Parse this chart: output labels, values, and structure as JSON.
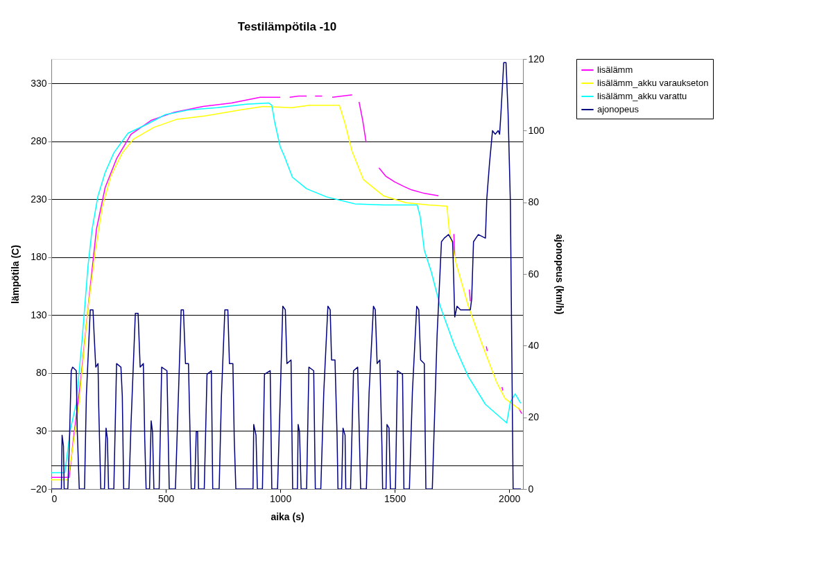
{
  "chart_data": {
    "type": "line",
    "title": "Testilämpötila -10",
    "xlabel": "aika (s)",
    "ylabel": "lämpötila (C)",
    "y2label": "ajonopeus (km/h)",
    "xlim": [
      0,
      2060
    ],
    "xticks": [
      0,
      500,
      1000,
      1500,
      2000
    ],
    "ylim": [
      -20,
      351
    ],
    "yticks": [
      -20,
      30,
      80,
      130,
      180,
      230,
      280,
      330
    ],
    "y2lim": [
      0,
      120
    ],
    "y2ticks": [
      0,
      20,
      40,
      60,
      80,
      100,
      120
    ],
    "grid": "y",
    "legend": "right",
    "ref_lines": [
      {
        "axis": "y",
        "value": 0,
        "color": "#000000"
      }
    ],
    "series": [
      {
        "name": "lisälämm",
        "color": "#ff00ff",
        "x": [
          0,
          78,
          97,
          128,
          166,
          197,
          235,
          285,
          348,
          436,
          536,
          662,
          787,
          912,
          988,
          1000,
          1020,
          1041,
          1080,
          1115,
          1134,
          1152,
          1183,
          1205,
          1227,
          1270,
          1314,
          1330,
          1344,
          1360,
          1375,
          1400,
          1431,
          1460,
          1499,
          1540,
          1574,
          1630,
          1691,
          1720,
          1758,
          1762,
          1790,
          1826,
          1830,
          1860,
          1900,
          1904,
          1935,
          1968,
          1972,
          2005,
          2040,
          2055
        ],
        "values": [
          -10,
          -10,
          24,
          73,
          147,
          204,
          240,
          265,
          286,
          298,
          305,
          310,
          313,
          318,
          318,
          318,
          null,
          318,
          319,
          319,
          null,
          319,
          319,
          null,
          318,
          319,
          320,
          null,
          314,
          298,
          279,
          null,
          257,
          250,
          245,
          241,
          238,
          235,
          233,
          null,
          200,
          181,
          null,
          152,
          142,
          null,
          103,
          99,
          null,
          68,
          65,
          null,
          50,
          45
        ]
      },
      {
        "name": "lisälämm_akku varaukseton",
        "color": "#ffff00",
        "x": [
          0,
          72,
          91,
          122,
          160,
          191,
          222,
          260,
          310,
          360,
          448,
          549,
          674,
          825,
          925,
          1050,
          1128,
          1258,
          1283,
          1314,
          1363,
          1450,
          1549,
          1648,
          1728,
          1737,
          1766,
          1821,
          1883,
          1945,
          1982,
          2050
        ],
        "values": [
          -12,
          -12,
          12,
          56,
          135,
          184,
          223,
          250,
          270,
          282,
          292,
          299,
          302,
          307,
          310,
          309,
          311,
          311,
          295,
          271,
          247,
          233,
          227,
          225,
          224,
          205,
          176,
          138,
          104,
          72,
          58,
          48
        ]
      },
      {
        "name": "lisälämm_akku varattu",
        "color": "#00ffff",
        "x": [
          0,
          59,
          84,
          109,
          135,
          160,
          178,
          204,
          235,
          273,
          335,
          411,
          498,
          599,
          724,
          850,
          950,
          963,
          975,
          1000,
          1016,
          1053,
          1115,
          1202,
          1326,
          1450,
          1598,
          1611,
          1629,
          1660,
          1698,
          1760,
          1821,
          1896,
          1989,
          2005,
          2026,
          2050
        ],
        "values": [
          -6,
          -6,
          32,
          54,
          110,
          172,
          204,
          233,
          253,
          270,
          287,
          294,
          303,
          307,
          309,
          312,
          313,
          311,
          297,
          275,
          268,
          249,
          239,
          232,
          226,
          225,
          225,
          215,
          186,
          167,
          138,
          104,
          77,
          53,
          37,
          55,
          62,
          54
        ]
      },
      {
        "name": "ajonopeus",
        "color": "#000080",
        "axis": "y2",
        "x": [
          0,
          44,
          47,
          53,
          56,
          72,
          78,
          87,
          93,
          109,
          113,
          122,
          145,
          153,
          170,
          182,
          187,
          194,
          204,
          207,
          216,
          232,
          239,
          245,
          250,
          273,
          285,
          304,
          310,
          316,
          339,
          348,
          367,
          379,
          388,
          402,
          408,
          414,
          429,
          436,
          442,
          448,
          471,
          482,
          505,
          515,
          542,
          555,
          567,
          577,
          586,
          599,
          605,
          611,
          626,
          633,
          639,
          643,
          668,
          680,
          699,
          705,
          733,
          743,
          758,
          771,
          778,
          793,
          799,
          806,
          881,
          884,
          894,
          900,
          922,
          931,
          956,
          963,
          988,
          1000,
          1011,
          1022,
          1029,
          1047,
          1054,
          1075,
          1078,
          1084,
          1091,
          1115,
          1125,
          1146,
          1153,
          1177,
          1190,
          1208,
          1218,
          1224,
          1239,
          1248,
          1252,
          1268,
          1274,
          1283,
          1286,
          1307,
          1320,
          1338,
          1351,
          1376,
          1388,
          1407,
          1415,
          1423,
          1435,
          1444,
          1447,
          1462,
          1466,
          1475,
          1481,
          1503,
          1512,
          1534,
          1540,
          1564,
          1577,
          1596,
          1605,
          1613,
          1629,
          1636,
          1664,
          1685,
          1704,
          1716,
          1735,
          1753,
          1762,
          1772,
          1787,
          1830,
          1836,
          1844,
          1865,
          1896,
          1902,
          1914,
          1927,
          1939,
          1952,
          1958,
          1964,
          1976,
          1986,
          1995,
          2005,
          2017,
          2051
        ],
        "values": [
          0,
          0,
          15,
          12,
          0,
          0,
          11,
          33,
          34,
          33,
          17,
          0,
          0,
          26,
          50,
          50,
          43,
          34,
          35,
          23,
          0,
          0,
          17,
          14,
          0,
          0,
          35,
          34,
          26,
          0,
          0,
          18,
          49,
          49,
          34,
          35,
          14,
          0,
          0,
          19,
          16,
          0,
          0,
          34,
          33,
          0,
          0,
          26,
          50,
          50,
          35,
          35,
          18,
          0,
          0,
          16,
          16,
          0,
          0,
          32,
          33,
          0,
          0,
          26,
          50,
          50,
          35,
          35,
          14,
          0,
          0,
          18,
          15,
          0,
          0,
          32,
          33,
          0,
          0,
          26,
          51,
          50,
          35,
          36,
          0,
          0,
          18,
          16,
          0,
          0,
          34,
          33,
          0,
          0,
          27,
          51,
          50,
          36,
          36,
          15,
          0,
          0,
          17,
          15,
          0,
          0,
          33,
          34,
          0,
          0,
          27,
          51,
          50,
          35,
          36,
          12,
          0,
          0,
          18,
          17,
          0,
          0,
          33,
          32,
          0,
          0,
          27,
          51,
          50,
          36,
          35,
          0,
          0,
          43,
          69,
          70,
          71,
          69,
          48,
          51,
          50,
          50,
          53,
          69,
          71,
          70,
          81,
          91,
          100,
          99,
          100,
          99,
          105,
          119,
          119,
          105,
          80,
          0,
          0
        ]
      }
    ]
  }
}
